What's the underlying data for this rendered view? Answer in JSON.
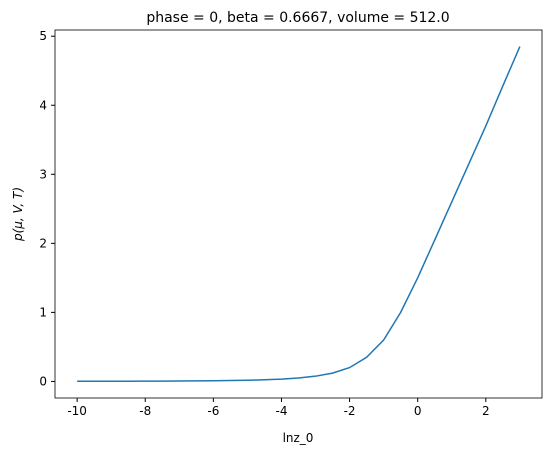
{
  "chart_data": {
    "type": "line",
    "title": "phase = 0, beta = 0.6667, volume = 512.0",
    "x_label": "lnz_0",
    "y_label": "p(μ, V, T)",
    "x": [
      -10,
      -9.5,
      -9,
      -8.5,
      -8,
      -7.5,
      -7,
      -6.5,
      -6,
      -5.5,
      -5,
      -4.5,
      -4,
      -3.5,
      -3,
      -2.5,
      -2,
      -1.5,
      -1,
      -0.5,
      0,
      0.5,
      1,
      1.5,
      2,
      2.5,
      3
    ],
    "series": [
      {
        "name": "p",
        "color": "#1f77b4",
        "values": [
          0.002,
          0.002,
          0.003,
          0.003,
          0.004,
          0.005,
          0.006,
          0.008,
          0.01,
          0.013,
          0.017,
          0.024,
          0.034,
          0.05,
          0.076,
          0.12,
          0.2,
          0.35,
          0.6,
          1.0,
          1.5,
          2.05,
          2.6,
          3.15,
          3.7,
          4.28,
          4.85
        ]
      }
    ],
    "xlim": [
      -10.65,
      3.65
    ],
    "ylim": [
      -0.24,
      5.09
    ],
    "xticks": [
      -10,
      -8,
      -6,
      -4,
      -2,
      0,
      2
    ],
    "yticks": [
      0,
      1,
      2,
      3,
      4,
      5
    ]
  }
}
